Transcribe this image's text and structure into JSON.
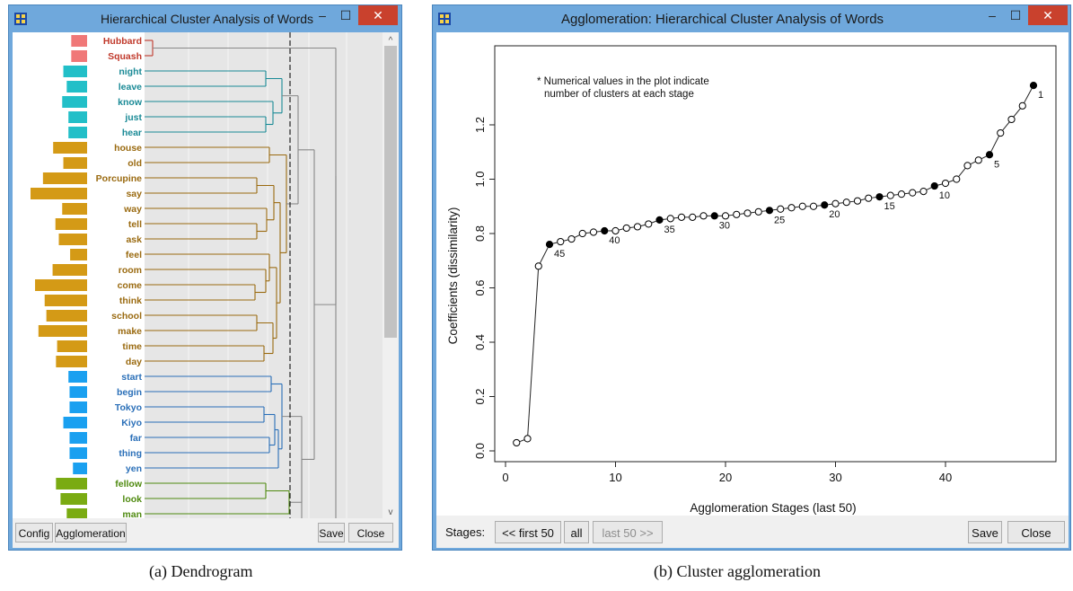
{
  "window_left": {
    "title": "Hierarchical Cluster Analysis of Words",
    "minimize": "–",
    "maximize": "☐",
    "close": "✕",
    "buttons": {
      "config": "Config",
      "agglomeration": "Agglomeration",
      "save": "Save",
      "close": "Close"
    },
    "cluster_colors": {
      "red": "#f07878",
      "teal": "#22bfc8",
      "gold": "#d49a16",
      "blue": "#1aa0f0",
      "green": "#7aab12"
    },
    "label_colors": {
      "red": "#c0392b",
      "teal": "#1a8a96",
      "gold": "#9a6a10",
      "blue": "#2a6fb8",
      "green": "#4f8a10"
    },
    "words": [
      {
        "word": "Hubbard",
        "cluster": "red",
        "freq": 0.28
      },
      {
        "word": "Squash",
        "cluster": "red",
        "freq": 0.28
      },
      {
        "word": "night",
        "cluster": "teal",
        "freq": 0.42
      },
      {
        "word": "leave",
        "cluster": "teal",
        "freq": 0.36
      },
      {
        "word": "know",
        "cluster": "teal",
        "freq": 0.44
      },
      {
        "word": "just",
        "cluster": "teal",
        "freq": 0.33
      },
      {
        "word": "hear",
        "cluster": "teal",
        "freq": 0.33
      },
      {
        "word": "house",
        "cluster": "gold",
        "freq": 0.6
      },
      {
        "word": "old",
        "cluster": "gold",
        "freq": 0.42
      },
      {
        "word": "Porcupine",
        "cluster": "gold",
        "freq": 0.78
      },
      {
        "word": "say",
        "cluster": "gold",
        "freq": 1.0
      },
      {
        "word": "way",
        "cluster": "gold",
        "freq": 0.44
      },
      {
        "word": "tell",
        "cluster": "gold",
        "freq": 0.56
      },
      {
        "word": "ask",
        "cluster": "gold",
        "freq": 0.5
      },
      {
        "word": "feel",
        "cluster": "gold",
        "freq": 0.3
      },
      {
        "word": "room",
        "cluster": "gold",
        "freq": 0.61
      },
      {
        "word": "come",
        "cluster": "gold",
        "freq": 0.92
      },
      {
        "word": "think",
        "cluster": "gold",
        "freq": 0.75
      },
      {
        "word": "school",
        "cluster": "gold",
        "freq": 0.72
      },
      {
        "word": "make",
        "cluster": "gold",
        "freq": 0.86
      },
      {
        "word": "time",
        "cluster": "gold",
        "freq": 0.53
      },
      {
        "word": "day",
        "cluster": "gold",
        "freq": 0.55
      },
      {
        "word": "start",
        "cluster": "blue",
        "freq": 0.33
      },
      {
        "word": "begin",
        "cluster": "blue",
        "freq": 0.31
      },
      {
        "word": "Tokyo",
        "cluster": "blue",
        "freq": 0.31
      },
      {
        "word": "Kiyo",
        "cluster": "blue",
        "freq": 0.42
      },
      {
        "word": "far",
        "cluster": "blue",
        "freq": 0.31
      },
      {
        "word": "thing",
        "cluster": "blue",
        "freq": 0.31
      },
      {
        "word": "yen",
        "cluster": "blue",
        "freq": 0.25
      },
      {
        "word": "fellow",
        "cluster": "green",
        "freq": 0.55
      },
      {
        "word": "look",
        "cluster": "green",
        "freq": 0.47
      },
      {
        "word": "man",
        "cluster": "green",
        "freq": 0.36
      }
    ]
  },
  "window_right": {
    "title": "Agglomeration: Hierarchical Cluster Analysis of Words",
    "minimize": "–",
    "maximize": "☐",
    "close": "✕",
    "status": {
      "stages_label": "Stages:",
      "first50": "<< first 50",
      "all": "all",
      "last50": "last 50 >>",
      "save": "Save",
      "close": "Close"
    }
  },
  "captions": {
    "a": "(a) Dendrogram",
    "b": "(b) Cluster agglomeration"
  },
  "chart_data": {
    "type": "scatter",
    "note_line1": "* Numerical values in the plot indicate",
    "note_line2": "number of clusters at each stage",
    "xlabel": "Agglomeration Stages (last 50)",
    "ylabel": "Coefficients (dissimilarity)",
    "xlim": [
      0,
      49
    ],
    "ylim": [
      0,
      1.35
    ],
    "x_ticks": [
      0,
      10,
      20,
      30,
      40
    ],
    "y_ticks": [
      0.0,
      0.2,
      0.4,
      0.6,
      0.8,
      1.0,
      1.2
    ],
    "series": [
      {
        "x": [
          1,
          2,
          3,
          4,
          5,
          6,
          7,
          8,
          9,
          10,
          11,
          12,
          13,
          14,
          15,
          16,
          17,
          18,
          19,
          20,
          21,
          22,
          23,
          24,
          25,
          26,
          27,
          28,
          29,
          30,
          31,
          32,
          33,
          34,
          35,
          36,
          37,
          38,
          39,
          40,
          41,
          42,
          43,
          44,
          45,
          46,
          47,
          48
        ],
        "values": [
          0.03,
          0.045,
          0.68,
          0.76,
          0.77,
          0.78,
          0.8,
          0.805,
          0.81,
          0.81,
          0.82,
          0.825,
          0.835,
          0.85,
          0.855,
          0.86,
          0.86,
          0.865,
          0.865,
          0.865,
          0.87,
          0.875,
          0.88,
          0.885,
          0.89,
          0.895,
          0.9,
          0.9,
          0.905,
          0.91,
          0.915,
          0.92,
          0.93,
          0.935,
          0.94,
          0.945,
          0.95,
          0.955,
          0.975,
          0.985,
          1.0,
          1.05,
          1.07,
          1.09,
          1.17,
          1.22,
          1.27,
          1.345
        ]
      }
    ],
    "highlighted": [
      {
        "x": 4,
        "label": "45"
      },
      {
        "x": 9,
        "label": "40"
      },
      {
        "x": 14,
        "label": "35"
      },
      {
        "x": 19,
        "label": "30"
      },
      {
        "x": 24,
        "label": "25"
      },
      {
        "x": 29,
        "label": "20"
      },
      {
        "x": 34,
        "label": "15"
      },
      {
        "x": 39,
        "label": "10"
      },
      {
        "x": 44,
        "label": "5"
      },
      {
        "x": 48,
        "label": "1"
      }
    ]
  }
}
